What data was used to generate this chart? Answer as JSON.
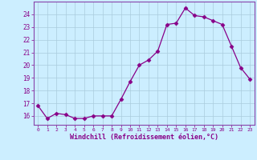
{
  "x": [
    0,
    1,
    2,
    3,
    4,
    5,
    6,
    7,
    8,
    9,
    10,
    11,
    12,
    13,
    14,
    15,
    16,
    17,
    18,
    19,
    20,
    21,
    22,
    23
  ],
  "y": [
    16.8,
    15.8,
    16.2,
    16.1,
    15.8,
    15.8,
    16.0,
    16.0,
    16.0,
    17.3,
    18.7,
    20.0,
    20.4,
    21.1,
    23.2,
    23.3,
    24.5,
    23.9,
    23.8,
    23.5,
    23.2,
    21.5,
    19.8,
    18.9
  ],
  "xlim": [
    -0.5,
    23.5
  ],
  "ylim": [
    15.3,
    25.0
  ],
  "yticks": [
    16,
    17,
    18,
    19,
    20,
    21,
    22,
    23,
    24
  ],
  "xticks": [
    0,
    1,
    2,
    3,
    4,
    5,
    6,
    7,
    8,
    9,
    10,
    11,
    12,
    13,
    14,
    15,
    16,
    17,
    18,
    19,
    20,
    21,
    22,
    23
  ],
  "xlabel": "Windchill (Refroidissement éolien,°C)",
  "line_color": "#880088",
  "marker": "D",
  "marker_size": 2.5,
  "bg_color": "#cceeff",
  "grid_color": "#aaccdd",
  "spine_color": "#8844aa"
}
